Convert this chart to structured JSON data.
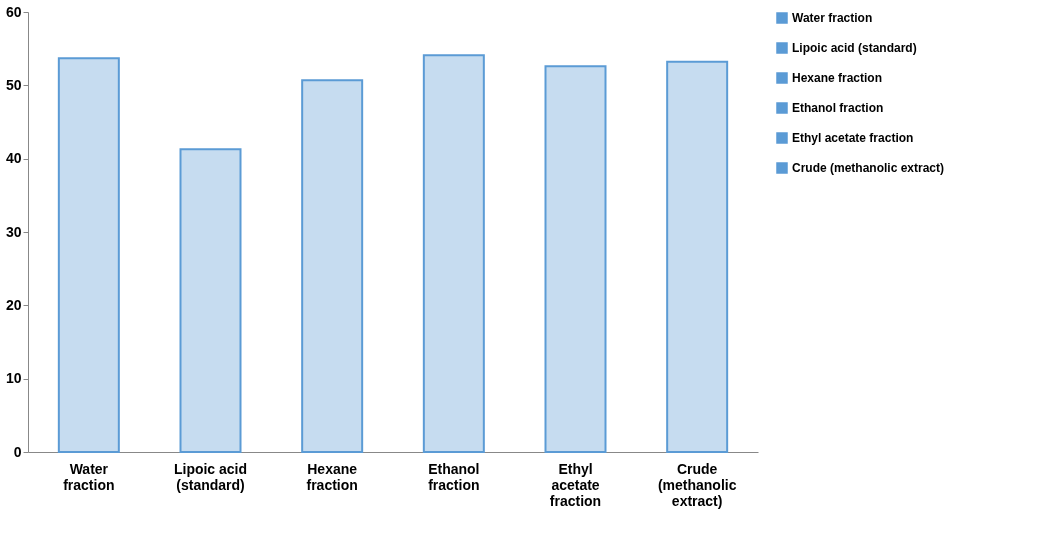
{
  "chart_data": {
    "type": "bar",
    "categories": [
      "Water fraction",
      "Lipoic acid (standard)",
      "Hexane fraction",
      "Ethanol fraction",
      "Ethyl acetate fraction",
      "Crude (methanolic extract)"
    ],
    "series": [
      {
        "name": "Water fraction",
        "color": "#5b9bd5",
        "values": [
          53.7,
          null,
          null,
          null,
          null,
          null
        ]
      },
      {
        "name": "Lipoic acid (standard)",
        "color": "#5b9bd5",
        "values": [
          null,
          41.3,
          null,
          null,
          null,
          null
        ]
      },
      {
        "name": "Hexane fraction",
        "color": "#5b9bd5",
        "values": [
          null,
          null,
          50.7,
          null,
          null,
          null
        ]
      },
      {
        "name": "Ethanol fraction",
        "color": "#5b9bd5",
        "values": [
          null,
          null,
          null,
          54.1,
          null,
          null
        ]
      },
      {
        "name": "Ethyl acetate fraction",
        "color": "#5b9bd5",
        "values": [
          null,
          null,
          null,
          null,
          52.6,
          null
        ]
      },
      {
        "name": "Crude (methanolic extract)",
        "color": "#5b9bd5",
        "values": [
          null,
          null,
          null,
          null,
          null,
          53.2
        ]
      }
    ],
    "ylim": [
      0,
      60
    ],
    "yticks": [
      0,
      10,
      20,
      30,
      40,
      50,
      60
    ],
    "grid": false,
    "legend": "right"
  }
}
